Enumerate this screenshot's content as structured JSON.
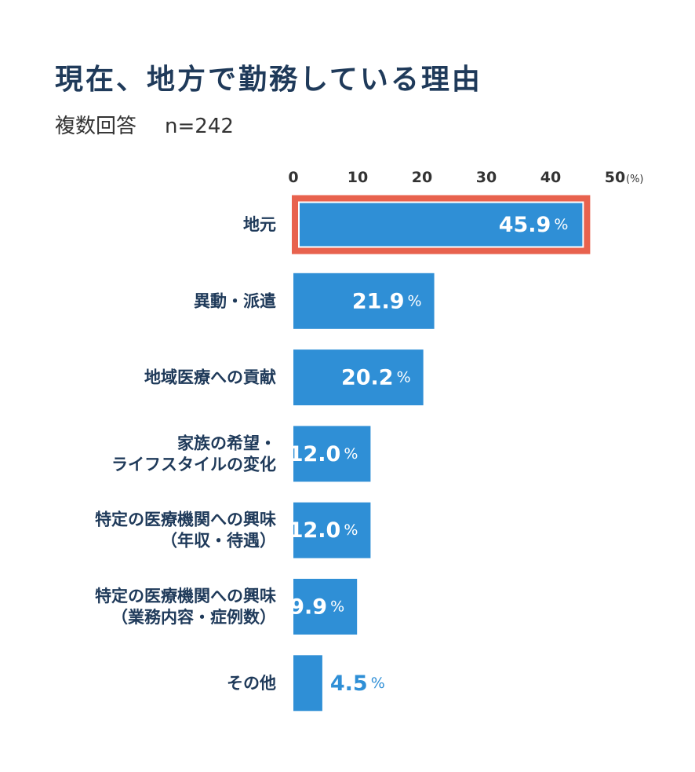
{
  "title": "現在、地方で勤務している理由",
  "subtitle": "複数回答",
  "sample": "n=242",
  "colors": {
    "bar": "#2f8fd6",
    "highlight": "#e8624e",
    "label": "#1f3a5a",
    "value_inside": "#ffffff",
    "value_outside": "#2f8fd6"
  },
  "chart_data": {
    "type": "bar",
    "orientation": "horizontal",
    "xlim": [
      0,
      50
    ],
    "ticks": [
      0,
      10,
      20,
      30,
      40,
      50
    ],
    "tick_labels": [
      "0",
      "10",
      "20",
      "30",
      "40",
      "50"
    ],
    "unit_label": "(%)",
    "value_suffix": "%",
    "categories": [
      [
        "地元"
      ],
      [
        "異動・派遣"
      ],
      [
        "地域医療への貢献"
      ],
      [
        "家族の希望・",
        "ライフスタイルの変化"
      ],
      [
        "特定の医療機関への興味",
        "（年収・待遇）"
      ],
      [
        "特定の医療機関への興味",
        "（業務内容・症例数）"
      ],
      [
        "その他"
      ]
    ],
    "values": [
      45.9,
      21.9,
      20.2,
      12.0,
      12.0,
      9.9,
      4.5
    ],
    "value_labels": [
      "45.9",
      "21.9",
      "20.2",
      "12.0",
      "12.0",
      "9.9",
      "4.5"
    ],
    "highlighted_index": 0
  }
}
